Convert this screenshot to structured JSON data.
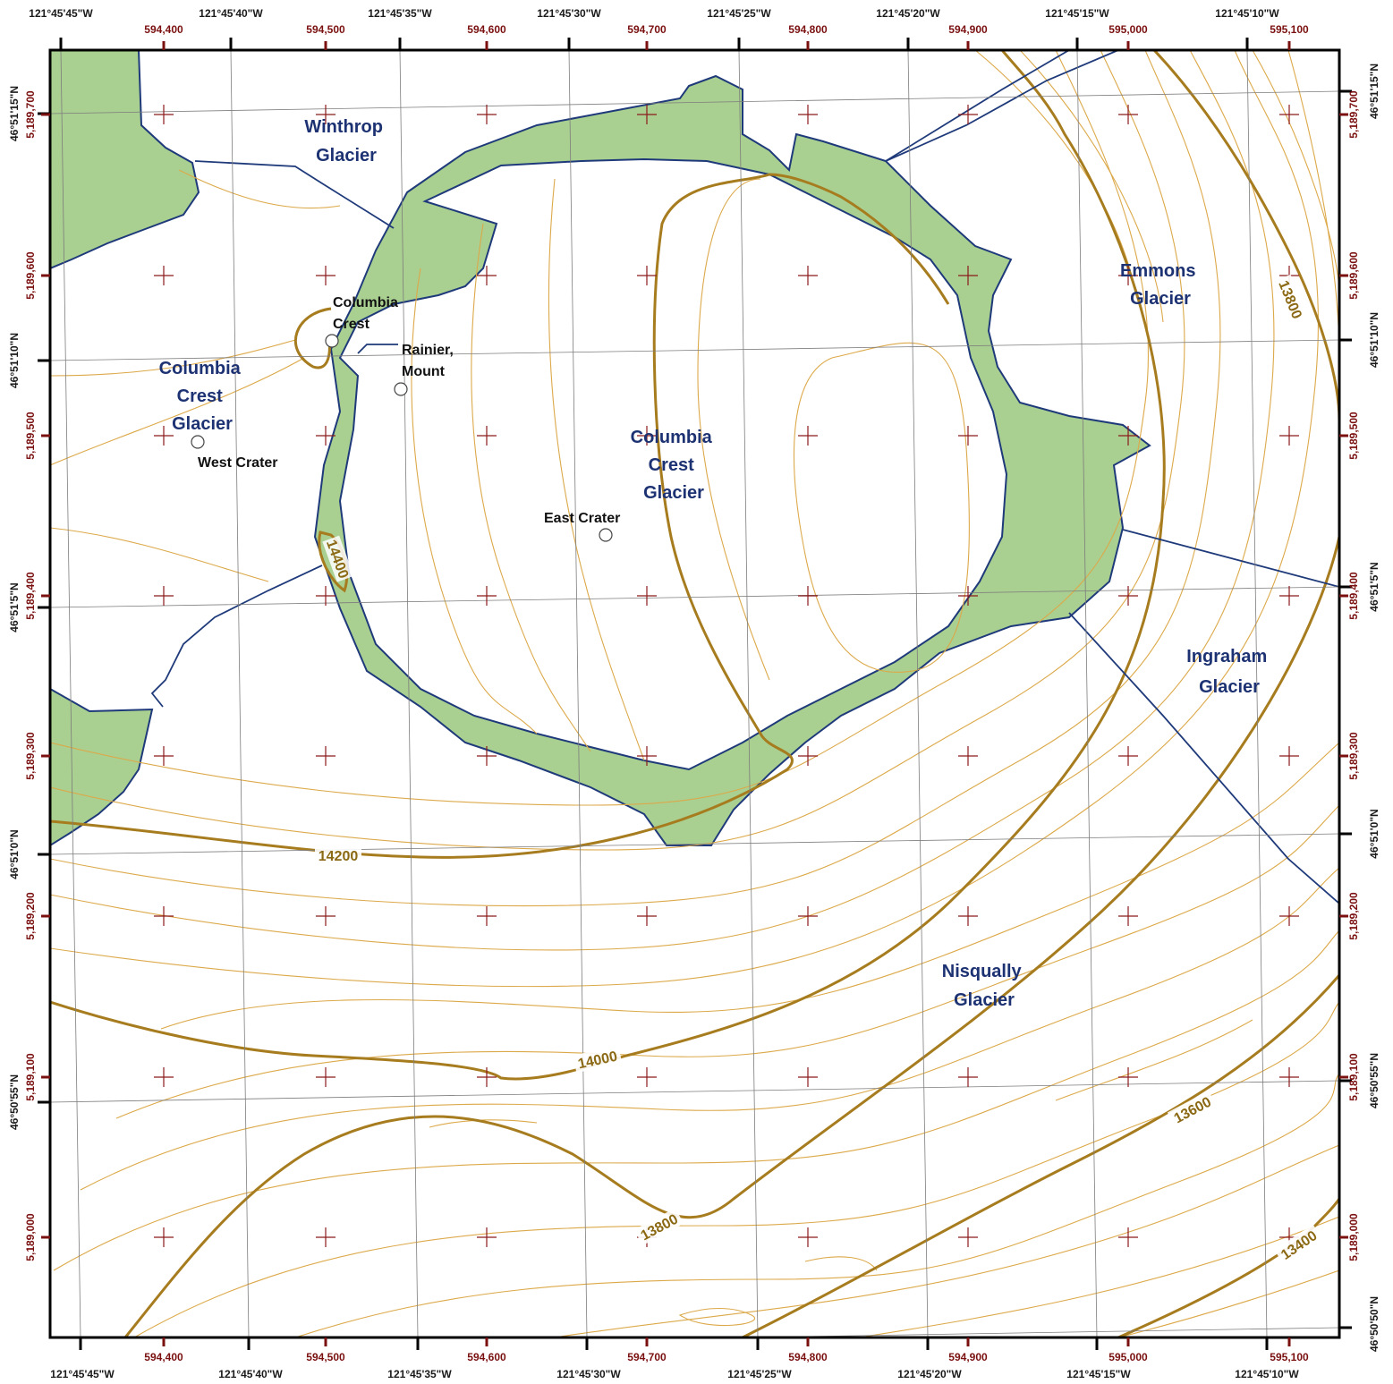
{
  "map": {
    "colors": {
      "rock": "#a9cf91",
      "boundary": "#1f3a7a",
      "index_contour": "#a67c1f",
      "contour": "#dca94a",
      "utm_label": "#7a1010",
      "glacier_label": "#1d3272"
    },
    "glacier_labels": [
      {
        "lines": [
          "Winthrop",
          "Glacier"
        ]
      },
      {
        "lines": [
          "Columbia",
          "Crest",
          "Glacier"
        ]
      },
      {
        "lines": [
          "Columbia",
          "Crest",
          "Glacier"
        ]
      },
      {
        "lines": [
          "Emmons",
          "Glacier"
        ]
      },
      {
        "lines": [
          "Ingraham",
          "Glacier"
        ]
      },
      {
        "lines": [
          "Nisqually",
          "Glacier"
        ]
      }
    ],
    "feature_labels": [
      {
        "lines": [
          "Columbia",
          "Crest"
        ]
      },
      {
        "lines": [
          "Rainier,",
          "Mount"
        ]
      },
      {
        "lines": [
          "West Crater"
        ]
      },
      {
        "lines": [
          "East Crater"
        ]
      }
    ],
    "contour_labels": [
      "14400",
      "14200",
      "14000",
      "13800",
      "13800",
      "13600",
      "13400"
    ],
    "top_longitudes": [
      "121°45'45\"W",
      "121°45'40\"W",
      "121°45'35\"W",
      "121°45'30\"W",
      "121°45'25\"W",
      "121°45'20\"W",
      "121°45'15\"W",
      "121°45'10\"W"
    ],
    "bottom_longitudes": [
      "121°45'45\"W",
      "121°45'40\"W",
      "121°45'35\"W",
      "121°45'30\"W",
      "121°45'25\"W",
      "121°45'20\"W",
      "121°45'15\"W",
      "121°45'10\"W"
    ],
    "eastings": [
      "594,400",
      "594,500",
      "594,600",
      "594,700",
      "594,800",
      "594,900",
      "595,000",
      "595,100"
    ],
    "left_latitudes": [
      "46°51'15\"N",
      "46°51'10\"N",
      "46°51'5\"N",
      "46°51'0\"N",
      "46°50'55\"N"
    ],
    "right_latitudes": [
      "46°51'15\"N",
      "46°51'10\"N",
      "46°51'5\"N",
      "46°51'0\"N",
      "46°50'55\"N",
      "46°50'50\"N"
    ],
    "northings": [
      "5,189,700",
      "5,189,600",
      "5,189,500",
      "5,189,400",
      "5,189,300",
      "5,189,200",
      "5,189,100",
      "5,189,000"
    ]
  }
}
